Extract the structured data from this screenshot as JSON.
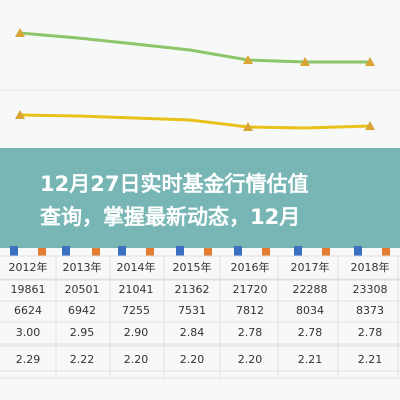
{
  "title_lines": [
    "12月27日实时基金行情估值",
    "查询，掌握最新动态，12月"
  ],
  "table": {
    "header": [
      "2012年",
      "2013年",
      "2014年",
      "2015年",
      "2016年",
      "2017年",
      "2018年"
    ],
    "rows": [
      [
        "19861",
        "20501",
        "21041",
        "21362",
        "21720",
        "22288",
        "23308"
      ],
      [
        "6624",
        "6942",
        "7255",
        "7531",
        "7812",
        "8034",
        "8373"
      ],
      [
        "3.00",
        "2.95",
        "2.90",
        "2.84",
        "2.78",
        "2.78",
        "2.78"
      ],
      [
        "2.29",
        "2.22",
        "2.20",
        "2.20",
        "2.20",
        "2.21",
        "2.21"
      ]
    ]
  }
}
